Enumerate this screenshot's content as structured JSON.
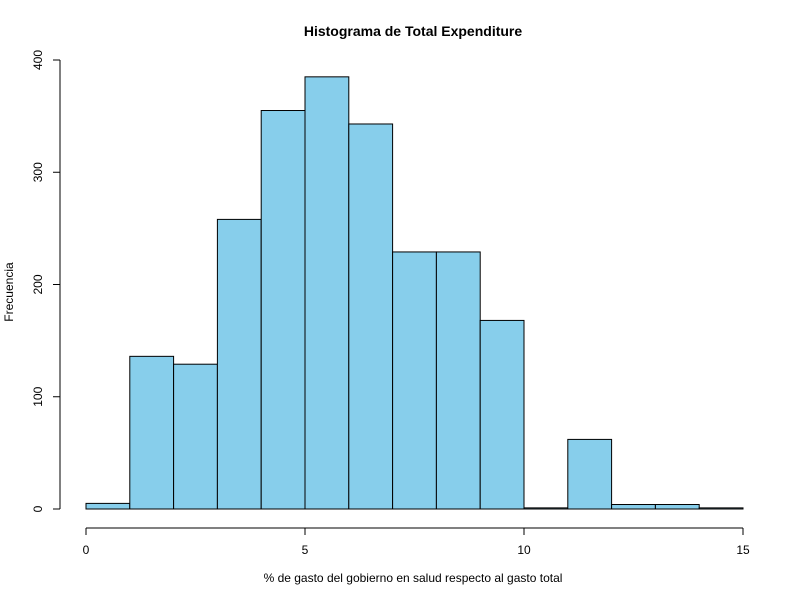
{
  "chart_data": {
    "type": "bar",
    "title": "Histograma de Total Expenditure",
    "xlabel": "% de gasto del gobierno en salud respecto al gasto total",
    "ylabel": "Frecuencia",
    "bin_edges": [
      0,
      1,
      2,
      3,
      4,
      5,
      6,
      7,
      8,
      9,
      10,
      11,
      12,
      13,
      14,
      15
    ],
    "values": [
      5,
      136,
      129,
      258,
      355,
      385,
      343,
      229,
      229,
      168,
      1,
      62,
      4,
      4,
      1
    ],
    "xlim": [
      0,
      15
    ],
    "ylim": [
      0,
      400
    ],
    "x_ticks": [
      0,
      5,
      10,
      15
    ],
    "y_ticks": [
      0,
      100,
      200,
      300,
      400
    ],
    "x_tick_labels": [
      "0",
      "5",
      "10",
      "15"
    ],
    "y_tick_labels": [
      "0",
      "100",
      "200",
      "300",
      "400"
    ],
    "grid": false,
    "legend": "none",
    "bar_color": "#87ceeb",
    "bar_edge_color": "#000000"
  }
}
